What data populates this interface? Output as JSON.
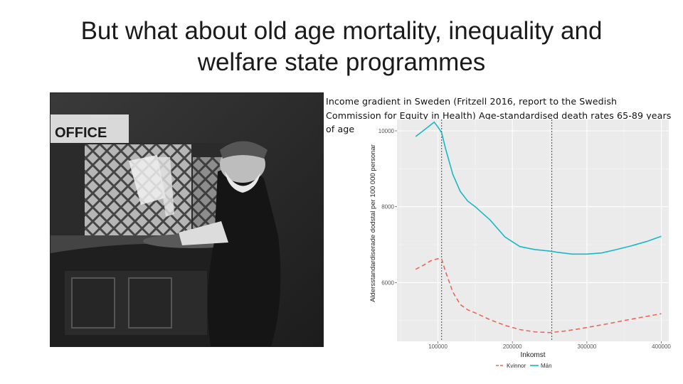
{
  "slide": {
    "title_lines": [
      "But what about old age mortality, inequality and",
      "welfare state programmes"
    ],
    "caption_lines": [
      "Income gradient in Sweden (Fritzell 2016, report to the Swedish",
      "Commission for Equity in Health) Age-standardised death rates 65-89 years",
      "of age"
    ],
    "photo_sign_text": "OFFICE"
  },
  "chart_data": {
    "type": "line",
    "xlabel": "Inkomst",
    "ylabel": "Aldersstandardiserade dodstal per 100 000 personar",
    "xlim": [
      45000,
      410000
    ],
    "ylim": [
      4450,
      10300
    ],
    "x_ticks": [
      100000,
      200000,
      300000,
      400000
    ],
    "x_tick_labels": [
      "100000",
      "200000",
      "300000",
      "400000"
    ],
    "y_ticks": [
      6000,
      8000,
      10000
    ],
    "y_tick_labels": [
      "6000",
      "8000",
      "10000"
    ],
    "grid": true,
    "background": "#ebebeb",
    "reference_lines_x": [
      105000,
      253000
    ],
    "legend_position": "bottom",
    "series": [
      {
        "name": "Kvinnor",
        "color": "#e8695a",
        "dash": true,
        "x": [
          70000,
          80000,
          90000,
          100000,
          105000,
          110000,
          120000,
          130000,
          140000,
          150000,
          170000,
          190000,
          210000,
          230000,
          250000,
          270000,
          290000,
          310000,
          330000,
          350000,
          370000,
          400000
        ],
        "values": [
          6350,
          6450,
          6570,
          6630,
          6620,
          6300,
          5750,
          5420,
          5280,
          5200,
          5020,
          4870,
          4760,
          4700,
          4680,
          4720,
          4780,
          4850,
          4920,
          5000,
          5070,
          5180
        ]
      },
      {
        "name": "Män",
        "color": "#19b7c7",
        "dash": false,
        "x": [
          70000,
          80000,
          95000,
          100000,
          105000,
          110000,
          120000,
          130000,
          140000,
          150000,
          170000,
          190000,
          210000,
          230000,
          250000,
          260000,
          280000,
          300000,
          320000,
          340000,
          360000,
          380000,
          400000
        ],
        "values": [
          9850,
          10000,
          10230,
          10100,
          9950,
          9550,
          8850,
          8400,
          8150,
          8000,
          7650,
          7200,
          6950,
          6870,
          6830,
          6800,
          6750,
          6750,
          6780,
          6870,
          6970,
          7080,
          7220
        ]
      }
    ]
  }
}
